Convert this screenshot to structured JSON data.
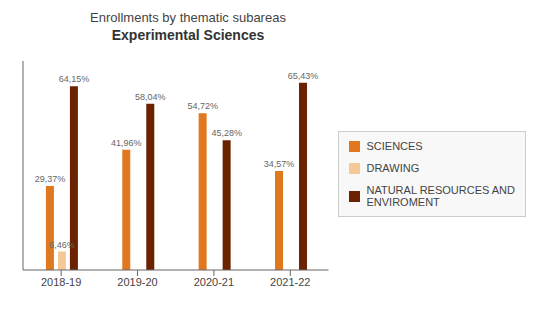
{
  "chart_data": {
    "type": "bar",
    "title": "Enrollments  by thematic subareas",
    "subtitle": "Experimental Sciences",
    "categories": [
      "2018-19",
      "2019-20",
      "2020-21",
      "2021-22"
    ],
    "series": [
      {
        "name": "SCIENCES",
        "color": "#E07820",
        "values": [
          29.37,
          41.96,
          54.72,
          34.57
        ],
        "value_labels": [
          "29,37%",
          "41,96%",
          "54,72%",
          "34,57%"
        ]
      },
      {
        "name": "DRAWING",
        "color": "#F5C898",
        "values": [
          6.46,
          0,
          0,
          0
        ],
        "value_labels": [
          "6,46%",
          null,
          null,
          null
        ]
      },
      {
        "name": "NATURAL RESOURCES AND\nENVIROMENT",
        "color": "#6B2200",
        "values": [
          64.15,
          58.04,
          45.28,
          65.43
        ],
        "value_labels": [
          "64,15%",
          "58,04%",
          "45,28%",
          "65,43%"
        ]
      }
    ],
    "ylim": [
      0,
      73
    ],
    "grid": false,
    "legend": "right",
    "data_labels": true,
    "tick_labels": "x"
  }
}
